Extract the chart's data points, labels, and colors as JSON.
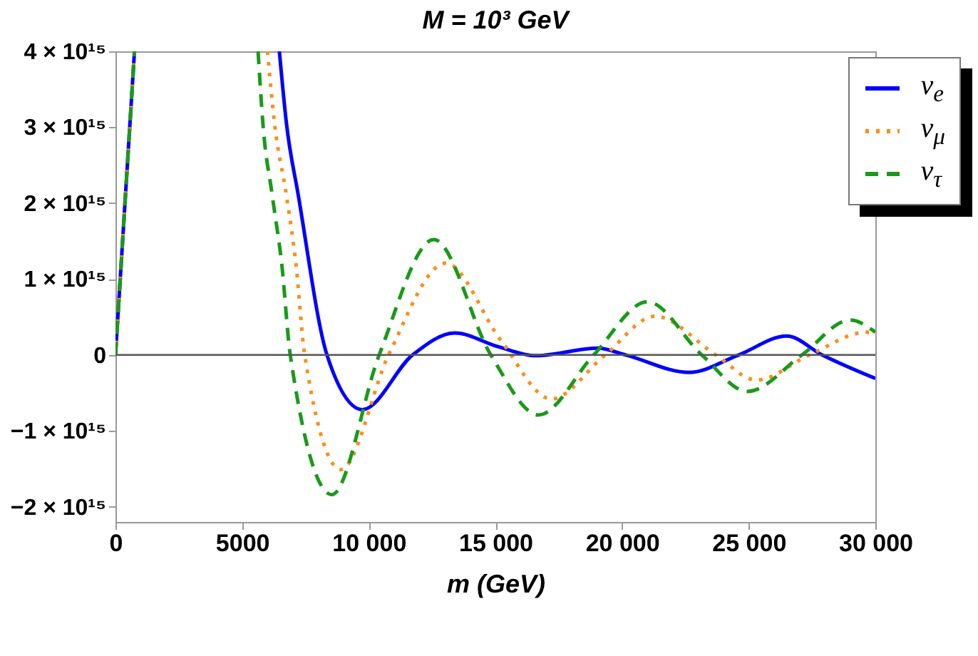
{
  "chart_data": {
    "type": "line",
    "title": "M = 10³ GeV",
    "xlabel": "m (GeV)",
    "xlim": [
      0,
      30000
    ],
    "xticks": [
      0,
      5000,
      {
        "value": 10000,
        "label": "10 000"
      },
      {
        "value": 15000,
        "label": "15 000"
      },
      {
        "value": 20000,
        "label": "20 000"
      },
      {
        "value": 25000,
        "label": "25 000"
      },
      {
        "value": 30000,
        "label": "30 000"
      }
    ],
    "ylim": [
      -2200000000000000.0,
      4000000000000000.0
    ],
    "yticks": [
      {
        "value": -2000000000000000.0,
        "label": "−2 × 10¹⁵"
      },
      {
        "value": -1000000000000000.0,
        "label": "−1 × 10¹⁵"
      },
      0,
      {
        "value": 1000000000000000.0,
        "label": "1 × 10¹⁵"
      },
      {
        "value": 2000000000000000.0,
        "label": "2 × 10¹⁵"
      },
      {
        "value": 3000000000000000.0,
        "label": "3 × 10¹⁵"
      },
      {
        "value": 4000000000000000.0,
        "label": "4 × 10¹⁵"
      }
    ],
    "legend": "top right",
    "ref_lines": [
      {
        "axis": "y",
        "value": 0,
        "color": "#555555"
      }
    ],
    "series": [
      {
        "name": "ν$_{e}$",
        "color": "#0000ff",
        "line_style": "solid",
        "x": [
          0,
          750,
          800,
          6470,
          6750,
          7220,
          8350,
          9750,
          11730,
          13400,
          15100,
          16600,
          19050,
          20150,
          22650,
          24600,
          26500,
          27900,
          30000
        ],
        "values": [
          0,
          4000000000000000.0,
          null,
          4000000000000000.0,
          3050000000000000.0,
          2100000000000000.0,
          0,
          -720000000000000.0,
          0,
          290000000000000.0,
          110000000000000.0,
          -10000000000000.0,
          90000000000000.0,
          0,
          -230000000000000.0,
          0,
          250000000000000.0,
          0,
          -310000000000000.0
        ]
      },
      {
        "name": "ν$_{μ}$",
        "color": "#ff8c1a",
        "line_style": "dotted",
        "x": [
          0,
          750,
          800,
          6000,
          6280,
          6750,
          7130,
          7470,
          8900,
          10780,
          13040,
          15200,
          17200,
          19330,
          21300,
          23700,
          25300,
          27400,
          29650,
          30000
        ],
        "values": [
          0,
          4000000000000000.0,
          null,
          4000000000000000.0,
          3050000000000000.0,
          2100000000000000.0,
          1180000000000000.0,
          0,
          -1510000000000000.0,
          0,
          1210000000000000.0,
          200000000000000.0,
          -580000000000000.0,
          0,
          510000000000000.0,
          0,
          -330000000000000.0,
          0,
          300000000000000.0,
          270000000000000.0
        ]
      },
      {
        "name": "ν$_{τ}$",
        "color": "#1a9a1a",
        "line_style": "dashed",
        "x": [
          0,
          750,
          800,
          5630,
          5820,
          6190,
          6570,
          6900,
          8540,
          10410,
          12570,
          14820,
          16700,
          18880,
          21000,
          23150,
          24950,
          27100,
          29000,
          30000
        ],
        "values": [
          0,
          4000000000000000.0,
          null,
          4000000000000000.0,
          3050000000000000.0,
          2100000000000000.0,
          1180000000000000.0,
          0,
          -1840000000000000.0,
          0,
          1520000000000000.0,
          0,
          -790000000000000.0,
          0,
          700000000000000.0,
          0,
          -480000000000000.0,
          0,
          460000000000000.0,
          300000000000000.0
        ]
      }
    ]
  }
}
